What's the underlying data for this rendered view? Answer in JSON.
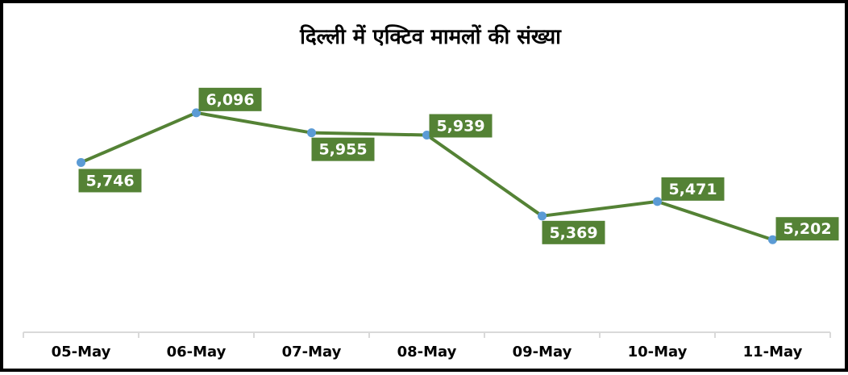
{
  "chart_data": {
    "type": "line",
    "title": "दिल्ली में एक्टिव मामलों की संख्या",
    "xlabel": "",
    "ylabel": "",
    "categories": [
      "05-May",
      "06-May",
      "07-May",
      "08-May",
      "09-May",
      "10-May",
      "11-May"
    ],
    "series": [
      {
        "values": [
          5746,
          6096,
          5955,
          5939,
          5369,
          5471,
          5202
        ],
        "labels": [
          "5,746",
          "6,096",
          "5,955",
          "5,939",
          "5,369",
          "5,471",
          "5,202"
        ]
      }
    ],
    "ylim": [
      4550,
      6470
    ],
    "grid": false,
    "legend": "none",
    "colors": {
      "line": "#548235",
      "marker": "#5B9BD5",
      "label_bg": "#548235",
      "label_text": "#ffffff",
      "axis": "#d9d9d9"
    }
  }
}
